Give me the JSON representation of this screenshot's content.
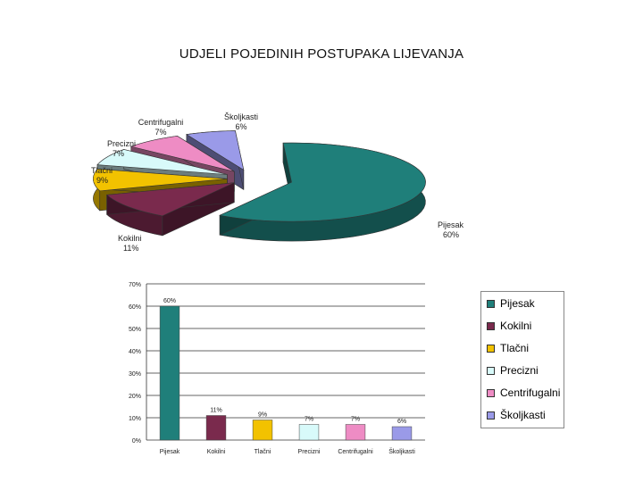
{
  "title": "UDJELI POJEDINIH POSTUPAKA LIJEVANJA",
  "chart_data": [
    {
      "type": "pie",
      "style": "3d-exploded",
      "slices": [
        {
          "label": "Pijesak",
          "value": 60,
          "value_label": "60%",
          "color": "#1f7f7a"
        },
        {
          "label": "Kokilni",
          "value": 11,
          "value_label": "11%",
          "color": "#7a2a4d"
        },
        {
          "label": "Tlačni",
          "value": 9,
          "value_label": "9%",
          "color": "#f2c200"
        },
        {
          "label": "Precizni",
          "value": 7,
          "value_label": "7%",
          "color": "#d8fafa"
        },
        {
          "label": "Centrifugalni",
          "value": 7,
          "value_label": "7%",
          "color": "#ee8cc4"
        },
        {
          "label": "Školjkasti",
          "value": 6,
          "value_label": "6%",
          "color": "#9a9ae8"
        }
      ]
    },
    {
      "type": "bar",
      "categories": [
        "Pijesak",
        "Kokilni",
        "Tlačni",
        "Precizni",
        "Centrifugalni",
        "Školjkasti"
      ],
      "values": [
        60,
        11,
        9,
        7,
        7,
        6
      ],
      "data_labels": [
        "60%",
        "11%",
        "9%",
        "7%",
        "7%",
        "6%"
      ],
      "colors": [
        "#1f7f7a",
        "#7a2a4d",
        "#f2c200",
        "#d8fafa",
        "#ee8cc4",
        "#9a9ae8"
      ],
      "ylim": [
        0,
        70
      ],
      "yticks": [
        "0%",
        "10%",
        "20%",
        "30%",
        "40%",
        "50%",
        "60%",
        "70%"
      ],
      "grid": true,
      "legend": {
        "placement": "right",
        "entries": [
          "Pijesak",
          "Kokilni",
          "Tlačni",
          "Precizni",
          "Centrifugalni",
          "Školjkasti"
        ]
      }
    }
  ]
}
